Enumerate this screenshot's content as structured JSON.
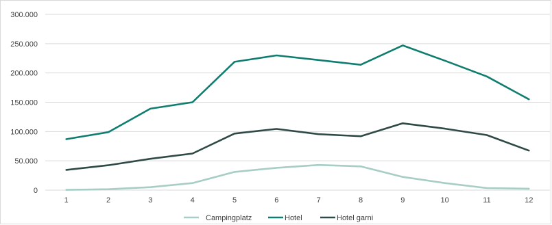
{
  "chart_data": {
    "type": "line",
    "title": "",
    "xlabel": "",
    "ylabel": "",
    "x": [
      1,
      2,
      3,
      4,
      5,
      6,
      7,
      8,
      9,
      10,
      11,
      12
    ],
    "x_tick_labels": [
      "1",
      "2",
      "3",
      "4",
      "5",
      "6",
      "7",
      "8",
      "9",
      "10",
      "11",
      "12"
    ],
    "ylim": [
      0,
      300000
    ],
    "y_tick_labels": [
      "0",
      "50.000",
      "100.000",
      "150.000",
      "200.000",
      "250.000",
      "300.000"
    ],
    "y_tick_values": [
      0,
      50000,
      100000,
      150000,
      200000,
      250000,
      300000
    ],
    "grid": "horizontal",
    "legend_position": "bottom",
    "series": [
      {
        "name": "Campingplatz",
        "color": "#a7cdc5",
        "values": [
          500,
          1500,
          5000,
          12000,
          31000,
          38000,
          43000,
          40500,
          22500,
          12000,
          3500,
          2500
        ]
      },
      {
        "name": "Hotel",
        "color": "#0f7d70",
        "values": [
          87000,
          99000,
          139000,
          150000,
          219000,
          230000,
          222000,
          214000,
          247000,
          221000,
          194000,
          155000
        ]
      },
      {
        "name": "Hotel garni",
        "color": "#2f4a46",
        "values": [
          34500,
          42500,
          53500,
          62500,
          96500,
          104500,
          95500,
          92000,
          114000,
          105000,
          94000,
          67500
        ]
      }
    ]
  }
}
